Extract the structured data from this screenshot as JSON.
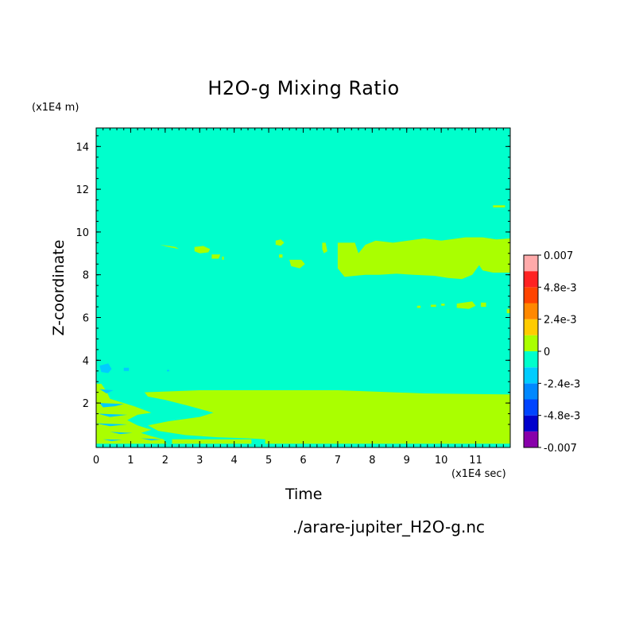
{
  "chart_data": {
    "type": "heatmap",
    "title": "H2O-g Mixing Ratio",
    "xlabel": "Time",
    "ylabel": "Z-coordinate",
    "x_unit_label": "(x1E4 sec)",
    "y_unit_label": "(x1E4 m)",
    "xlim": [
      0,
      12
    ],
    "ylim": [
      0.1,
      15
    ],
    "x_ticks": [
      0,
      1,
      2,
      3,
      4,
      5,
      6,
      7,
      8,
      9,
      10,
      11
    ],
    "y_ticks": [
      2,
      4,
      6,
      8,
      10,
      12,
      14
    ],
    "background_level_color": "#00ffcc",
    "colorbar": {
      "colors": [
        "#8800aa",
        "#0000cc",
        "#0044ff",
        "#0088ff",
        "#00ccff",
        "#00ffcc",
        "#aaff00",
        "#ffcc00",
        "#ff8800",
        "#ff4400",
        "#ff2222",
        "#ffaaaa"
      ],
      "labels": [
        "-0.007",
        "-4.8e-3",
        "-2.4e-3",
        "0",
        "2.4e-3",
        "4.8e-3",
        "0.007"
      ],
      "label_levels": [
        0,
        2,
        4,
        6,
        8,
        10,
        12
      ]
    },
    "regions": [
      {
        "level": "positive",
        "color": "#aaff00",
        "points": [
          [
            1.4,
            2.5
          ],
          [
            3,
            2.6
          ],
          [
            5,
            2.6
          ],
          [
            7,
            2.6
          ],
          [
            9.5,
            2.45
          ],
          [
            12,
            2.4
          ],
          [
            12,
            0.1
          ],
          [
            2.2,
            0.1
          ],
          [
            2.2,
            0.3
          ],
          [
            3,
            0.3
          ],
          [
            4.5,
            0.3
          ],
          [
            4.5,
            0.1
          ],
          [
            4.9,
            0.1
          ],
          [
            4.9,
            0.3
          ],
          [
            4.4,
            0.35
          ],
          [
            3.5,
            0.4
          ],
          [
            2.6,
            0.5
          ],
          [
            1.8,
            0.7
          ],
          [
            1.5,
            0.95
          ],
          [
            2.1,
            1.15
          ],
          [
            3,
            1.35
          ],
          [
            3.4,
            1.55
          ],
          [
            2.6,
            1.9
          ],
          [
            2,
            2.15
          ],
          [
            1.5,
            2.3
          ]
        ]
      },
      {
        "level": "positive",
        "color": "#aaff00",
        "points": [
          [
            0,
            0.1
          ],
          [
            0,
            2.9
          ],
          [
            0.15,
            2.9
          ],
          [
            0.3,
            2.55
          ],
          [
            0.4,
            2.2
          ],
          [
            0.7,
            2.05
          ],
          [
            1.1,
            1.85
          ],
          [
            1.6,
            1.55
          ],
          [
            1.2,
            1.45
          ],
          [
            0.9,
            1.2
          ],
          [
            1.2,
            0.95
          ],
          [
            1.6,
            0.75
          ],
          [
            1.3,
            0.6
          ],
          [
            1.6,
            0.45
          ],
          [
            1.95,
            0.3
          ],
          [
            2.05,
            0.1
          ]
        ]
      },
      {
        "level": "negative",
        "color": "#00ccff",
        "points": [
          [
            0.1,
            2.65
          ],
          [
            0.5,
            2.6
          ],
          [
            0.3,
            2.45
          ]
        ]
      },
      {
        "level": "negative",
        "color": "#00ccff",
        "points": [
          [
            0.1,
            2.0
          ],
          [
            0.8,
            1.95
          ],
          [
            0.55,
            1.85
          ],
          [
            0.2,
            1.8
          ]
        ]
      },
      {
        "level": "negative",
        "color": "#00ccff",
        "points": [
          [
            0.05,
            1.5
          ],
          [
            0.9,
            1.45
          ],
          [
            0.4,
            1.35
          ]
        ]
      },
      {
        "level": "negative",
        "color": "#00ccff",
        "points": [
          [
            0,
            1.05
          ],
          [
            0.9,
            1.0
          ],
          [
            0.4,
            0.92
          ]
        ]
      },
      {
        "level": "negative",
        "color": "#00ccff",
        "points": [
          [
            0.4,
            0.65
          ],
          [
            1.05,
            0.6
          ],
          [
            0.7,
            0.55
          ]
        ]
      },
      {
        "level": "negative",
        "color": "#00ccff",
        "points": [
          [
            0.2,
            0.3
          ],
          [
            0.75,
            0.28
          ],
          [
            0.45,
            0.22
          ]
        ]
      },
      {
        "level": "negative",
        "color": "#00ccff",
        "points": [
          [
            1.3,
            0.35
          ],
          [
            1.9,
            0.3
          ],
          [
            1.6,
            0.25
          ]
        ]
      },
      {
        "level": "positive",
        "color": "#aaff00",
        "points": [
          [
            7,
            8.3
          ],
          [
            7,
            9.5
          ],
          [
            7.5,
            9.5
          ],
          [
            7.6,
            9.0
          ],
          [
            7.8,
            9.4
          ],
          [
            8.1,
            9.6
          ],
          [
            8.6,
            9.5
          ],
          [
            9.5,
            9.7
          ],
          [
            10,
            9.6
          ],
          [
            10.7,
            9.75
          ],
          [
            11.2,
            9.75
          ],
          [
            11.6,
            9.65
          ],
          [
            12,
            9.7
          ],
          [
            12,
            8.1
          ],
          [
            11.5,
            8.1
          ],
          [
            11.2,
            8.2
          ],
          [
            11.1,
            8.45
          ],
          [
            10.9,
            8.0
          ],
          [
            10.6,
            7.8
          ],
          [
            10.2,
            7.85
          ],
          [
            9.8,
            7.95
          ],
          [
            9.2,
            8.0
          ],
          [
            8.7,
            8.05
          ],
          [
            8.2,
            8.0
          ],
          [
            7.8,
            8.0
          ],
          [
            7.5,
            7.95
          ],
          [
            7.2,
            7.9
          ]
        ]
      },
      {
        "level": "positive",
        "color": "#aaff00",
        "points": [
          [
            6.55,
            9.5
          ],
          [
            6.65,
            9.5
          ],
          [
            6.7,
            9.1
          ],
          [
            6.6,
            9.0
          ],
          [
            6.55,
            9.2
          ]
        ]
      },
      {
        "level": "positive",
        "color": "#aaff00",
        "points": [
          [
            5.6,
            8.7
          ],
          [
            5.95,
            8.7
          ],
          [
            6.05,
            8.5
          ],
          [
            5.9,
            8.3
          ],
          [
            5.65,
            8.4
          ]
        ]
      },
      {
        "level": "positive",
        "color": "#aaff00",
        "points": [
          [
            5.2,
            9.6
          ],
          [
            5.35,
            9.65
          ],
          [
            5.45,
            9.5
          ],
          [
            5.35,
            9.35
          ],
          [
            5.2,
            9.4
          ]
        ]
      },
      {
        "level": "positive",
        "color": "#aaff00",
        "points": [
          [
            5.3,
            8.95
          ],
          [
            5.4,
            8.95
          ],
          [
            5.4,
            8.8
          ],
          [
            5.3,
            8.8
          ]
        ]
      },
      {
        "level": "positive",
        "color": "#aaff00",
        "points": [
          [
            2.85,
            9.3
          ],
          [
            3.1,
            9.35
          ],
          [
            3.3,
            9.2
          ],
          [
            3.25,
            9.05
          ],
          [
            3.0,
            9.0
          ],
          [
            2.85,
            9.1
          ]
        ]
      },
      {
        "level": "positive",
        "color": "#aaff00",
        "points": [
          [
            1.85,
            9.4
          ],
          [
            2.1,
            9.35
          ],
          [
            2.3,
            9.3
          ],
          [
            2.4,
            9.2
          ],
          [
            2.1,
            9.3
          ]
        ]
      },
      {
        "level": "positive",
        "color": "#aaff00",
        "points": [
          [
            3.35,
            8.95
          ],
          [
            3.6,
            8.95
          ],
          [
            3.55,
            8.75
          ],
          [
            3.35,
            8.75
          ]
        ]
      },
      {
        "level": "positive",
        "color": "#aaff00",
        "points": [
          [
            3.65,
            8.85
          ],
          [
            3.7,
            8.85
          ],
          [
            3.7,
            8.7
          ],
          [
            3.65,
            8.7
          ]
        ]
      },
      {
        "level": "positive",
        "color": "#aaff00",
        "points": [
          [
            10.45,
            6.65
          ],
          [
            10.9,
            6.75
          ],
          [
            11.0,
            6.55
          ],
          [
            10.8,
            6.4
          ],
          [
            10.45,
            6.45
          ]
        ]
      },
      {
        "level": "positive",
        "color": "#aaff00",
        "points": [
          [
            11.15,
            6.7
          ],
          [
            11.3,
            6.7
          ],
          [
            11.3,
            6.5
          ],
          [
            11.15,
            6.5
          ]
        ]
      },
      {
        "level": "positive",
        "color": "#aaff00",
        "points": [
          [
            9.3,
            6.55
          ],
          [
            9.4,
            6.55
          ],
          [
            9.4,
            6.45
          ],
          [
            9.3,
            6.45
          ]
        ]
      },
      {
        "level": "positive",
        "color": "#aaff00",
        "points": [
          [
            9.7,
            6.6
          ],
          [
            9.85,
            6.6
          ],
          [
            9.85,
            6.5
          ],
          [
            9.7,
            6.5
          ]
        ]
      },
      {
        "level": "positive",
        "color": "#aaff00",
        "points": [
          [
            10.0,
            6.65
          ],
          [
            10.1,
            6.65
          ],
          [
            10.1,
            6.55
          ],
          [
            10.0,
            6.55
          ]
        ]
      },
      {
        "level": "positive",
        "color": "#aaff00",
        "points": [
          [
            11.5,
            11.25
          ],
          [
            11.85,
            11.25
          ],
          [
            11.85,
            11.15
          ],
          [
            11.5,
            11.15
          ]
        ]
      },
      {
        "level": "positive",
        "color": "#aaff00",
        "points": [
          [
            11.9,
            6.4
          ],
          [
            12,
            6.4
          ],
          [
            12,
            6.2
          ],
          [
            11.9,
            6.2
          ]
        ]
      },
      {
        "level": "negative",
        "color": "#00ccff",
        "points": [
          [
            0.1,
            3.75
          ],
          [
            0.35,
            3.85
          ],
          [
            0.45,
            3.6
          ],
          [
            0.35,
            3.4
          ],
          [
            0.15,
            3.45
          ]
        ]
      },
      {
        "level": "negative",
        "color": "#00ccff",
        "points": [
          [
            0.8,
            3.65
          ],
          [
            0.95,
            3.65
          ],
          [
            0.95,
            3.5
          ],
          [
            0.8,
            3.5
          ]
        ]
      },
      {
        "level": "negative",
        "color": "#00ccff",
        "points": [
          [
            2.05,
            3.55
          ],
          [
            2.12,
            3.55
          ],
          [
            2.12,
            3.48
          ],
          [
            2.05,
            3.48
          ]
        ]
      }
    ]
  },
  "source_file": "./arare-jupiter_H2O-g.nc"
}
